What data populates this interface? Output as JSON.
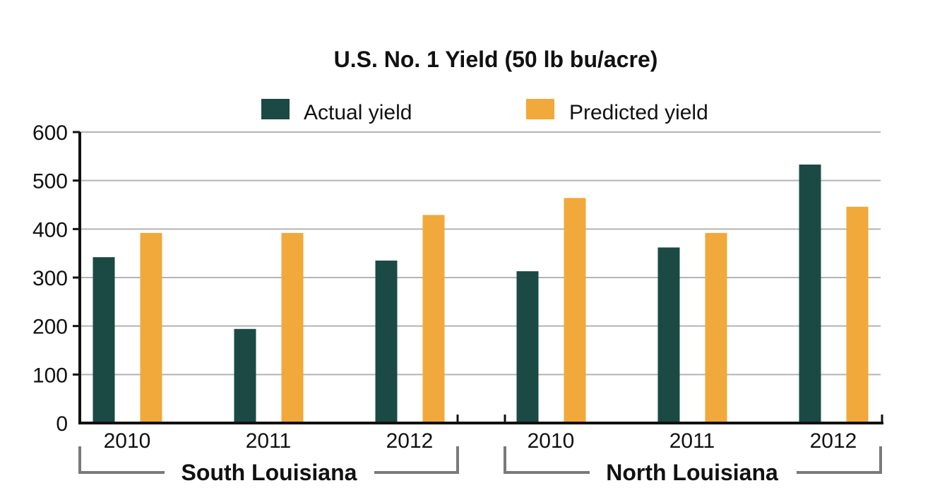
{
  "chart_data": {
    "type": "bar",
    "title": "U.S. No. 1 Yield (50 lb bu/acre)",
    "categories": [
      "2010",
      "2011",
      "2012",
      "2010",
      "2011",
      "2012"
    ],
    "groups": [
      {
        "label": "South Louisiana",
        "categories": [
          "2010",
          "2011",
          "2012"
        ]
      },
      {
        "label": "North Louisiana",
        "categories": [
          "2010",
          "2011",
          "2012"
        ]
      }
    ],
    "series": [
      {
        "name": "Actual yield",
        "color": "#1b4a44",
        "values": [
          342,
          194,
          335,
          313,
          362,
          533
        ]
      },
      {
        "name": "Predicted yield",
        "color": "#f0a93a",
        "values": [
          392,
          392,
          429,
          464,
          392,
          446
        ]
      }
    ],
    "ylim": [
      0,
      600
    ],
    "yticks": [
      "0",
      "100",
      "200",
      "300",
      "400",
      "500",
      "600"
    ],
    "grid": true,
    "legend": "top"
  }
}
